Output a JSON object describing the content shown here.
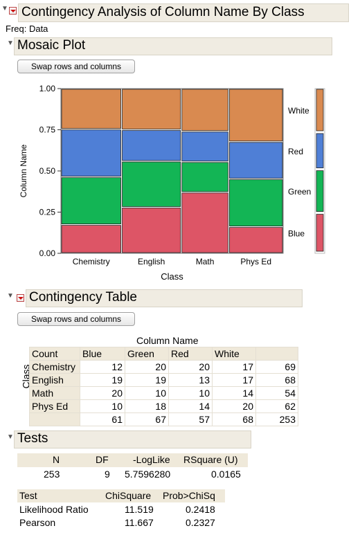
{
  "report": {
    "title": "Contingency Analysis of  Column Name  By Class",
    "freq_label": "Freq: Data"
  },
  "mosaic": {
    "title": "Mosaic Plot",
    "swap_label": "Swap rows and columns"
  },
  "chart_data": {
    "type": "mosaic",
    "xlabel": "Class",
    "ylabel": "Column Name",
    "ylim": [
      0,
      1
    ],
    "yticks": [
      "0.00",
      "0.25",
      "0.50",
      "0.75",
      "1.00"
    ],
    "categories": [
      "Chemistry",
      "English",
      "Math",
      "Phys Ed"
    ],
    "column_totals": [
      69,
      68,
      54,
      62
    ],
    "series": [
      {
        "name": "Blue",
        "color": "#dd5566",
        "values": [
          12,
          19,
          20,
          10
        ]
      },
      {
        "name": "Green",
        "color": "#13b555",
        "values": [
          20,
          19,
          10,
          18
        ]
      },
      {
        "name": "Red",
        "color": "#4f7fd6",
        "values": [
          20,
          13,
          10,
          14
        ]
      },
      {
        "name": "White",
        "color": "#d98a50",
        "values": [
          17,
          17,
          14,
          20
        ]
      }
    ],
    "legend_position": "right"
  },
  "contingency": {
    "title": "Contingency Table",
    "swap_label": "Swap rows and columns",
    "col_group_label": "Column Name",
    "row_group_label": "Class",
    "count_label": "Count",
    "col_headers": [
      "Blue",
      "Green",
      "Red",
      "White",
      ""
    ],
    "rows": [
      {
        "label": "Chemistry",
        "cells": [
          "12",
          "20",
          "20",
          "17",
          "69"
        ]
      },
      {
        "label": "English",
        "cells": [
          "19",
          "19",
          "13",
          "17",
          "68"
        ]
      },
      {
        "label": "Math",
        "cells": [
          "20",
          "10",
          "10",
          "14",
          "54"
        ]
      },
      {
        "label": "Phys Ed",
        "cells": [
          "10",
          "18",
          "14",
          "20",
          "62"
        ]
      },
      {
        "label": "",
        "cells": [
          "61",
          "67",
          "57",
          "68",
          "253"
        ]
      }
    ]
  },
  "tests": {
    "title": "Tests",
    "summary_headers": [
      "N",
      "DF",
      "-LogLike",
      "RSquare (U)"
    ],
    "summary_values": [
      "253",
      "9",
      "5.7596280",
      "0.0165"
    ],
    "test_headers": [
      "Test",
      "ChiSquare",
      "Prob>ChiSq"
    ],
    "test_rows": [
      [
        "Likelihood Ratio",
        "11.519",
        "0.2418"
      ],
      [
        "Pearson",
        "11.667",
        "0.2327"
      ]
    ]
  }
}
